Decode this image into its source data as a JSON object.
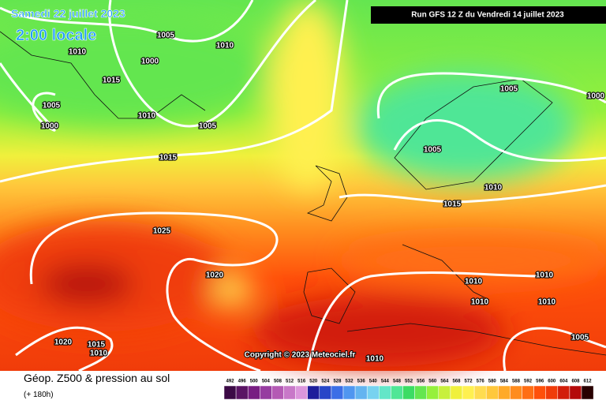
{
  "header": {
    "date": "Samedi 22 juillet 2023",
    "time": "2:00 locale",
    "run": "Run GFS 12 Z du Vendredi 14 juillet 2023"
  },
  "map": {
    "isobar_labels": [
      "1005",
      "1010",
      "1010",
      "1000",
      "1015",
      "1005",
      "1010",
      "1000",
      "1005",
      "1015",
      "1005",
      "1000",
      "1005",
      "1010",
      "1015",
      "1025",
      "1020",
      "1010",
      "1010",
      "1010",
      "1010",
      "1005",
      "1020",
      "1015",
      "1010",
      "1010"
    ],
    "copyright": "Copyright © 2023 Meteociel.fr"
  },
  "footer": {
    "title": "Géop. Z500 & pression au sol",
    "subtitle": "(+ 180h)"
  },
  "legend": {
    "ticks": [
      492,
      496,
      500,
      504,
      508,
      512,
      516,
      520,
      524,
      528,
      532,
      536,
      540,
      544,
      548,
      552,
      556,
      560,
      564,
      568,
      572,
      576,
      580,
      584,
      588,
      592,
      596,
      600,
      604,
      608,
      612
    ],
    "colors": [
      "#3c0a46",
      "#5a1464",
      "#781e82",
      "#963ca0",
      "#b45ab4",
      "#c878c8",
      "#dc96dc",
      "#1e1e9b",
      "#2846c8",
      "#3c6ee6",
      "#5096f0",
      "#64b4f0",
      "#78d2f0",
      "#64e6c8",
      "#50e696",
      "#3cdc64",
      "#64e650",
      "#96f03c",
      "#c8f03c",
      "#f0f03c",
      "#fff050",
      "#ffdc50",
      "#ffc83c",
      "#ffaa28",
      "#ff8c1e",
      "#ff6e14",
      "#ff500a",
      "#f03c0a",
      "#d21e0a",
      "#b40a0a",
      "#280000"
    ]
  }
}
